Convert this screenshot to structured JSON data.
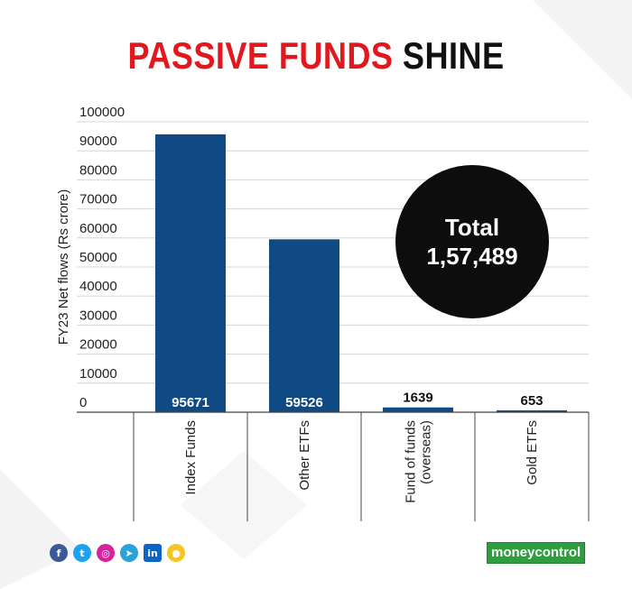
{
  "title": {
    "part1": "PASSIVE FUNDS",
    "part2": "SHINE"
  },
  "chart_data": {
    "type": "bar",
    "title": "PASSIVE FUNDS SHINE",
    "ylabel": "FY23 Net flows (Rs crore)",
    "xlabel": "",
    "ylim": [
      0,
      100000
    ],
    "yticks": [
      0,
      10000,
      20000,
      30000,
      40000,
      50000,
      60000,
      70000,
      80000,
      90000,
      100000
    ],
    "categories": [
      "Index Funds",
      "Other ETFs",
      "Fund of funds (overseas)",
      "Gold ETFs"
    ],
    "category_lines": [
      [
        "Index Funds"
      ],
      [
        "Other ETFs"
      ],
      [
        "Fund of funds",
        "(overseas)"
      ],
      [
        "Gold ETFs"
      ]
    ],
    "values": [
      95671,
      59526,
      1639,
      653
    ],
    "value_labels": [
      "95671",
      "59526",
      "1639",
      "653"
    ],
    "grid": true,
    "bar_color": "#0f4a84"
  },
  "total": {
    "label": "Total",
    "value": "1,57,489"
  },
  "footer": {
    "socials": [
      "facebook-icon",
      "twitter-icon",
      "instagram-icon",
      "telegram-icon",
      "linkedin-icon",
      "koo-icon"
    ],
    "brand": "moneycontrol"
  }
}
